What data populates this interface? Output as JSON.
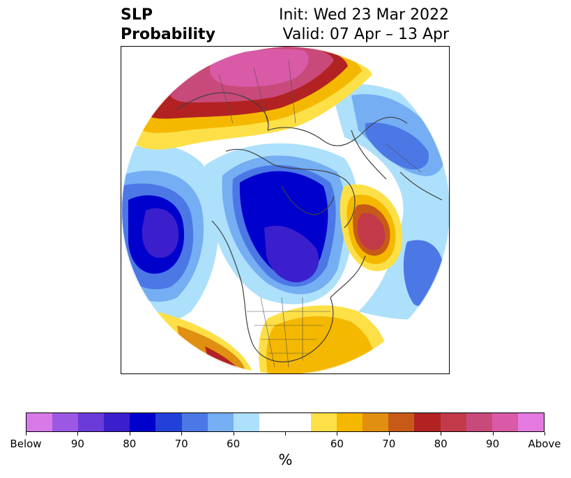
{
  "header": {
    "variable": "SLP",
    "product": "Probability",
    "init_line": "Init: Wed 23 Mar 2022",
    "valid_line": "Valid: 07 Apr – 13 Apr"
  },
  "map": {
    "projection": "north-polar-stereographic",
    "field": "sea-level-pressure-tercile-probability"
  },
  "colorbar": {
    "units": "%",
    "colors": [
      "#d77ae8",
      "#9c58e2",
      "#6a3bd8",
      "#3b1fcc",
      "#0000cc",
      "#2341d9",
      "#4c78e6",
      "#75aef2",
      "#ade0fb",
      "#ffffff",
      "#ffffff",
      "#fde047",
      "#f5b800",
      "#e08f10",
      "#c85a17",
      "#b22222",
      "#c23a4a",
      "#c84a7a",
      "#d95aa6",
      "#e47ae0"
    ],
    "tick_labels": [
      "Below",
      "90",
      "80",
      "70",
      "60",
      "60",
      "70",
      "80",
      "90",
      "Above"
    ]
  }
}
